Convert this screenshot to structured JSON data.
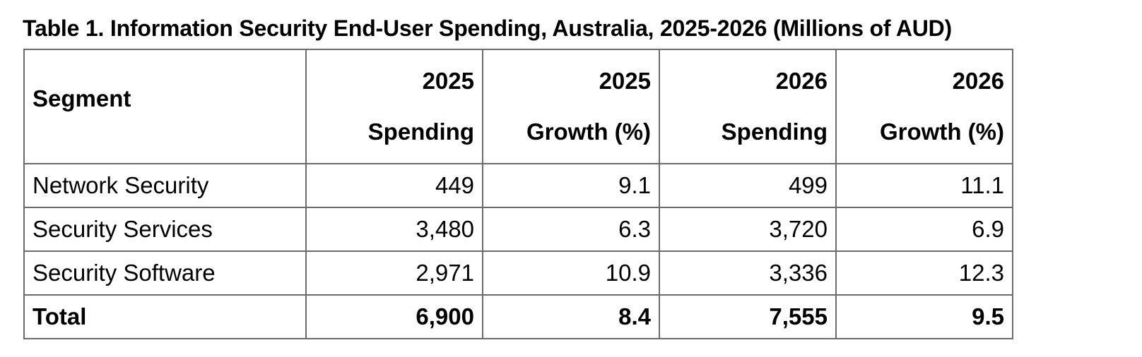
{
  "caption": "Table 1. Information Security End-User Spending, Australia, 2025-2026 (Millions of AUD)",
  "header": {
    "segment": "Segment",
    "columns": [
      {
        "line1": "2025",
        "line2": "Spending"
      },
      {
        "line1": "2025",
        "line2": "Growth (%)"
      },
      {
        "line1": "2026",
        "line2": "Spending"
      },
      {
        "line1": "2026",
        "line2": "Growth (%)"
      }
    ]
  },
  "rows": [
    {
      "segment": "Network Security",
      "spending_2025": "449",
      "growth_2025": "9.1",
      "spending_2026": "499",
      "growth_2026": "11.1"
    },
    {
      "segment": "Security Services",
      "spending_2025": "3,480",
      "growth_2025": "6.3",
      "spending_2026": "3,720",
      "growth_2026": "6.9"
    },
    {
      "segment": "Security Software",
      "spending_2025": "2,971",
      "growth_2025": "10.9",
      "spending_2026": "3,336",
      "growth_2026": "12.3"
    }
  ],
  "total": {
    "segment": "Total",
    "spending_2025": "6,900",
    "growth_2025": "8.4",
    "spending_2026": "7,555",
    "growth_2026": "9.5"
  }
}
